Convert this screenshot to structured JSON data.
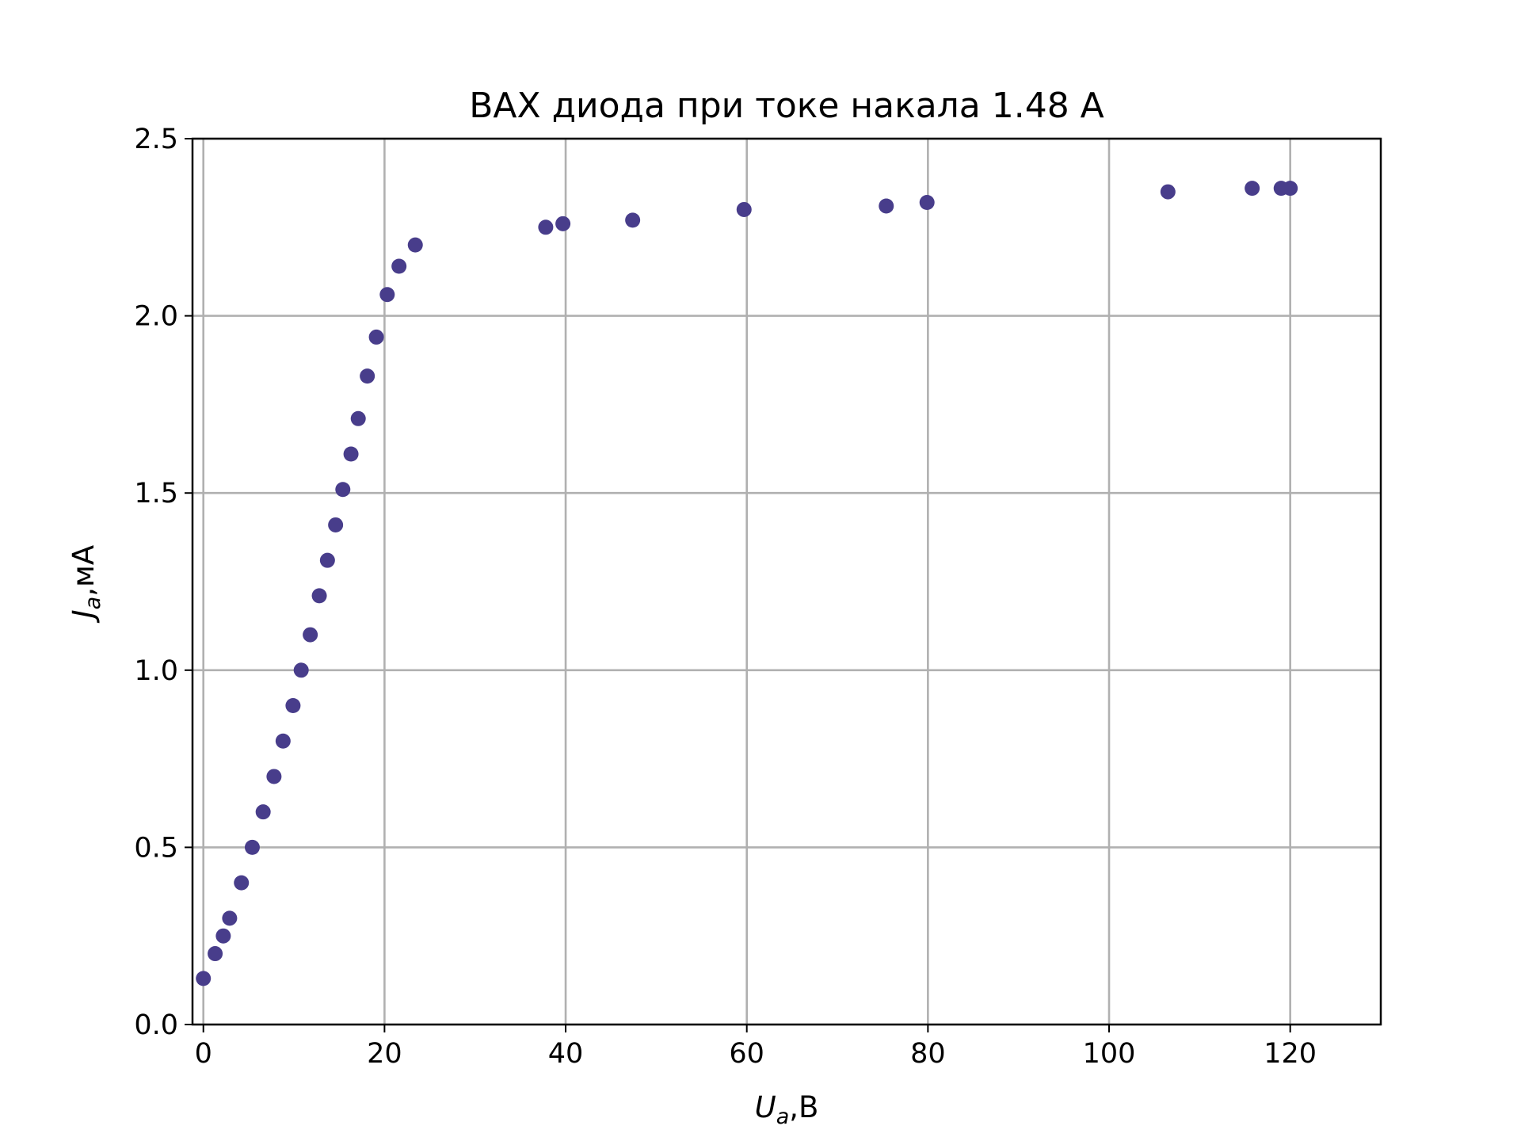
{
  "chart_data": {
    "type": "scatter",
    "title": "ВАХ диода при токе накала 1.48 А",
    "xlabel": {
      "main": "U",
      "sub": "a",
      "unit": ",В"
    },
    "ylabel": {
      "main": "J",
      "sub": "a",
      "unit": ",мА"
    },
    "xlim": [
      -1.2,
      130
    ],
    "ylim": [
      0,
      2.5
    ],
    "xticks": [
      0,
      20,
      40,
      60,
      80,
      100,
      120
    ],
    "yticks": [
      0.0,
      0.5,
      1.0,
      1.5,
      2.0,
      2.5
    ],
    "xtick_labels": [
      "0",
      "20",
      "40",
      "60",
      "80",
      "100",
      "120"
    ],
    "ytick_labels": [
      "0.0",
      "0.5",
      "1.0",
      "1.5",
      "2.0",
      "2.5"
    ],
    "grid": true,
    "marker_color": "#483d8b",
    "series": [
      {
        "x": [
          0.0,
          1.3,
          2.2,
          2.9,
          4.2,
          5.4,
          6.6,
          7.8,
          8.8,
          9.9,
          10.8,
          11.8,
          12.8,
          13.7,
          14.6,
          15.4,
          16.3,
          17.1,
          18.1,
          19.1,
          20.3,
          21.6,
          23.4,
          37.8,
          39.7,
          47.4,
          59.7,
          75.4,
          79.9,
          106.5,
          115.8,
          119.0,
          120.0
        ],
        "y": [
          0.13,
          0.2,
          0.25,
          0.3,
          0.4,
          0.5,
          0.6,
          0.7,
          0.8,
          0.9,
          1.0,
          1.1,
          1.21,
          1.31,
          1.41,
          1.51,
          1.61,
          1.71,
          1.83,
          1.94,
          2.06,
          2.14,
          2.2,
          2.25,
          2.26,
          2.27,
          2.3,
          2.31,
          2.32,
          2.35,
          2.36,
          2.36,
          2.36
        ]
      }
    ]
  }
}
